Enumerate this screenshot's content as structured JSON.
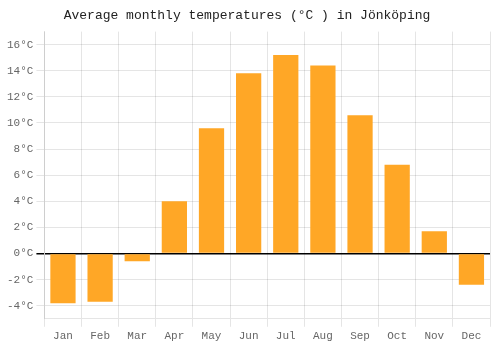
{
  "chart_data": {
    "type": "bar",
    "title": "Average monthly temperatures (°C ) in Jönköping",
    "categories": [
      "Jan",
      "Feb",
      "Mar",
      "Apr",
      "May",
      "Jun",
      "Jul",
      "Aug",
      "Sep",
      "Oct",
      "Nov",
      "Dec"
    ],
    "values": [
      -3.8,
      -3.7,
      -0.6,
      4.0,
      9.6,
      13.8,
      15.2,
      14.4,
      10.6,
      6.8,
      1.7,
      -2.4
    ],
    "color": "#FFA726",
    "ylim": [
      -5,
      17
    ],
    "yticks": [
      {
        "value": -4,
        "label": "-4°C"
      },
      {
        "value": -2,
        "label": "-2°C"
      },
      {
        "value": 0,
        "label": "0°C"
      },
      {
        "value": 2,
        "label": "2°C"
      },
      {
        "value": 4,
        "label": "4°C"
      },
      {
        "value": 6,
        "label": "6°C"
      },
      {
        "value": 8,
        "label": "8°C"
      },
      {
        "value": 10,
        "label": "10°C"
      },
      {
        "value": 12,
        "label": "12°C"
      },
      {
        "value": 14,
        "label": "14°C"
      },
      {
        "value": 16,
        "label": "16°C"
      }
    ],
    "grid": true
  }
}
